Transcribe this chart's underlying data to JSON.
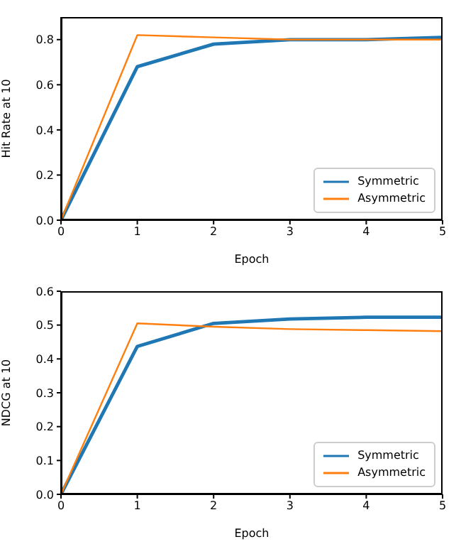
{
  "chart_data": [
    {
      "type": "line",
      "x": [
        0,
        1,
        2,
        3,
        4,
        5
      ],
      "xlabel": "Epoch",
      "ylabel": "Hit Rate at 10",
      "xlim": [
        0,
        5
      ],
      "xticks": [
        0,
        1,
        2,
        3,
        4,
        5
      ],
      "ylim": [
        0,
        0.9
      ],
      "yticks": [
        {
          "value": 0,
          "label": "0.0"
        },
        0.2,
        0.4,
        0.6,
        0.8
      ],
      "grid": false,
      "legend": "bottom right",
      "marker": "none",
      "series": [
        {
          "name": "Symmetric",
          "color": "#1f77b4",
          "values": [
            0,
            0.68,
            0.78,
            0.8,
            0.8,
            0.81
          ]
        },
        {
          "name": "Asymmetric",
          "color": "#ff7f0e",
          "values": [
            0,
            0.82,
            0.81,
            0.8,
            0.8,
            0.8
          ]
        }
      ]
    },
    {
      "type": "line",
      "x": [
        0,
        1,
        2,
        3,
        4,
        5
      ],
      "xlabel": "Epoch",
      "ylabel": "NDCG at 10",
      "xlim": [
        0,
        5
      ],
      "xticks": [
        0,
        1,
        2,
        3,
        4,
        5
      ],
      "ylim": [
        0,
        0.6
      ],
      "yticks": [
        {
          "value": 0,
          "label": "0.0"
        },
        0.1,
        0.2,
        0.3,
        0.4,
        0.5,
        0.6
      ],
      "grid": false,
      "legend": "bottom right",
      "marker": "none",
      "series": [
        {
          "name": "Symmetric",
          "color": "#1f77b4",
          "values": [
            0,
            0.437,
            0.505,
            0.518,
            0.523,
            0.523
          ]
        },
        {
          "name": "Asymmetric",
          "color": "#ff7f0e",
          "values": [
            0,
            0.505,
            0.495,
            0.488,
            0.485,
            0.482
          ]
        }
      ]
    }
  ]
}
